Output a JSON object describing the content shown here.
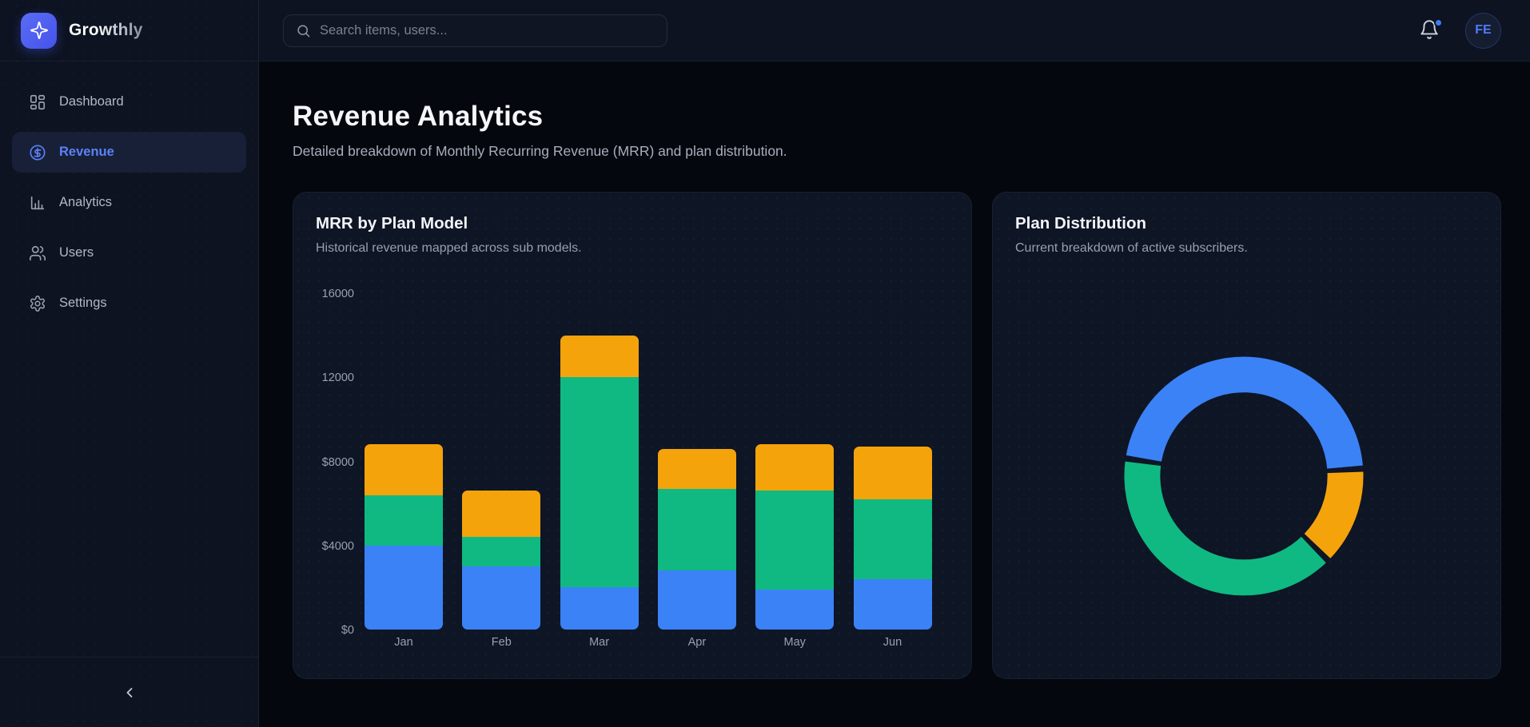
{
  "brand": {
    "name": "Growthly",
    "logo_icon": "sparkle-icon"
  },
  "sidebar": {
    "items": [
      {
        "label": "Dashboard",
        "icon": "dashboard-grid-icon",
        "active": false
      },
      {
        "label": "Revenue",
        "icon": "dollar-circle-icon",
        "active": true
      },
      {
        "label": "Analytics",
        "icon": "bar-chart-icon",
        "active": false
      },
      {
        "label": "Users",
        "icon": "users-icon",
        "active": false
      },
      {
        "label": "Settings",
        "icon": "gear-icon",
        "active": false
      }
    ],
    "collapse_icon": "chevron-left-icon"
  },
  "topbar": {
    "search_placeholder": "Search items, users...",
    "notification": {
      "icon": "bell-icon",
      "has_badge": true,
      "badge_color": "#3f7bf6"
    },
    "avatar_initials": "FE"
  },
  "page": {
    "title": "Revenue Analytics",
    "subtitle": "Detailed breakdown of Monthly Recurring Revenue (MRR) and plan distribution."
  },
  "cards": [
    {
      "title": "MRR by Plan Model",
      "subtitle": "Historical revenue mapped across sub models."
    },
    {
      "title": "Plan Distribution",
      "subtitle": "Current breakdown of active subscribers."
    }
  ],
  "colors": {
    "blue": "#3b82f6",
    "green": "#10b981",
    "orange": "#f5a30b",
    "accent": "#5b82f7"
  },
  "chart_data": [
    {
      "type": "bar",
      "stacked": true,
      "title": "MRR by Plan Model",
      "categories": [
        "Jan",
        "Feb",
        "Mar",
        "Apr",
        "May",
        "Jun"
      ],
      "series": [
        {
          "name": "blue",
          "color": "#3b82f6",
          "values": [
            4000,
            3000,
            2000,
            2800,
            1900,
            2400
          ]
        },
        {
          "name": "green",
          "color": "#10b981",
          "values": [
            2400,
            1400,
            10000,
            3900,
            4700,
            3800
          ]
        },
        {
          "name": "orange",
          "color": "#f5a30b",
          "values": [
            2400,
            2200,
            2000,
            1900,
            2200,
            2500
          ]
        }
      ],
      "totals": [
        8800,
        6600,
        14000,
        8600,
        8800,
        8700
      ],
      "yticks": [
        0,
        4000,
        8000,
        12000,
        16000
      ],
      "ytick_labels": [
        "$0",
        "$4000",
        "$8000",
        "12000",
        "16000"
      ],
      "ylim": [
        0,
        16000
      ],
      "grid": false,
      "legend": "none"
    },
    {
      "type": "donut",
      "title": "Plan Distribution",
      "segments": [
        {
          "name": "blue",
          "color": "#3b82f6",
          "value": 47
        },
        {
          "name": "orange",
          "color": "#f5a30b",
          "value": 13
        },
        {
          "name": "green",
          "color": "#10b981",
          "value": 40
        }
      ],
      "start_angle_deg": 190,
      "pad_angle_deg": 3,
      "outer_radius": 150,
      "inner_radius": 105,
      "legend": "none"
    }
  ]
}
